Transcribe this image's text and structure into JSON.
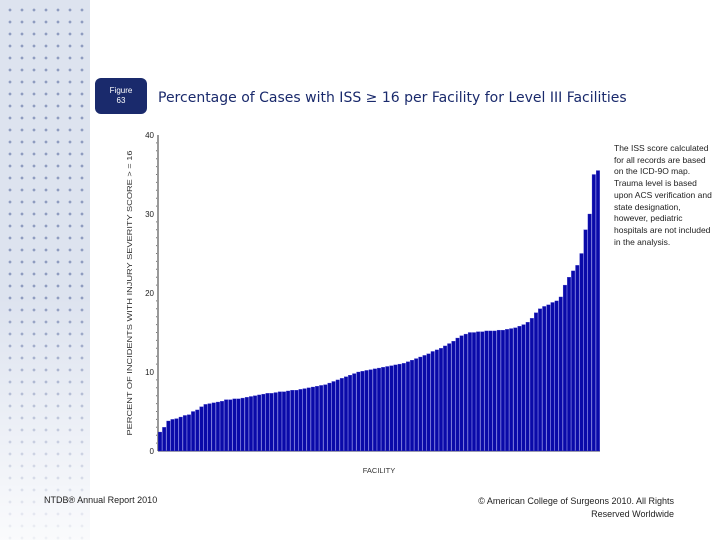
{
  "figure": {
    "label": "Figure",
    "number": "63"
  },
  "title": "Percentage of Cases with ISS ≥ 16 per Facility for Level III Facilities",
  "note": "The ISS score calculated for all records are based on the ICD-9O map. Trauma level is based upon ACS verification and state designation, however, pediatric hospitals are not included in the analysis.",
  "footer": {
    "left": "NTDB® Annual Report 2010",
    "right": "© American College of Surgeons 2010. All Rights Reserved Worldwide"
  },
  "colors": {
    "bar": "#0a0aa8",
    "bar_edge": "#3c3cd0",
    "title": "#1a2a6c",
    "badge": "#1a2a6c"
  },
  "chart_data": {
    "type": "bar",
    "xlabel": "FACILITY",
    "ylabel": "PERCENT OF INCIDENTS WITH INJURY SEVERITY SCORE > = 16",
    "ylim": [
      0,
      40
    ],
    "yticks": [
      "0",
      "10",
      "20",
      "30",
      "40"
    ],
    "values": [
      2.4,
      3.0,
      3.8,
      4.0,
      4.1,
      4.3,
      4.5,
      4.6,
      5.0,
      5.2,
      5.6,
      5.9,
      6.0,
      6.1,
      6.2,
      6.3,
      6.5,
      6.5,
      6.6,
      6.6,
      6.7,
      6.8,
      6.9,
      7.0,
      7.1,
      7.2,
      7.3,
      7.3,
      7.4,
      7.5,
      7.5,
      7.6,
      7.7,
      7.7,
      7.8,
      7.9,
      8.0,
      8.1,
      8.2,
      8.3,
      8.4,
      8.6,
      8.8,
      9.0,
      9.2,
      9.4,
      9.6,
      9.8,
      10.0,
      10.1,
      10.2,
      10.3,
      10.4,
      10.5,
      10.6,
      10.7,
      10.8,
      10.9,
      11.0,
      11.1,
      11.3,
      11.5,
      11.7,
      11.9,
      12.1,
      12.3,
      12.6,
      12.8,
      13.0,
      13.3,
      13.6,
      13.9,
      14.3,
      14.6,
      14.8,
      15.0,
      15.0,
      15.1,
      15.1,
      15.2,
      15.2,
      15.2,
      15.3,
      15.3,
      15.4,
      15.5,
      15.6,
      15.8,
      16.0,
      16.3,
      16.8,
      17.5,
      18.0,
      18.3,
      18.5,
      18.8,
      19.0,
      19.5,
      21.0,
      22.0,
      22.8,
      23.5,
      25.0,
      28.0,
      30.0,
      35.0,
      35.5
    ]
  }
}
